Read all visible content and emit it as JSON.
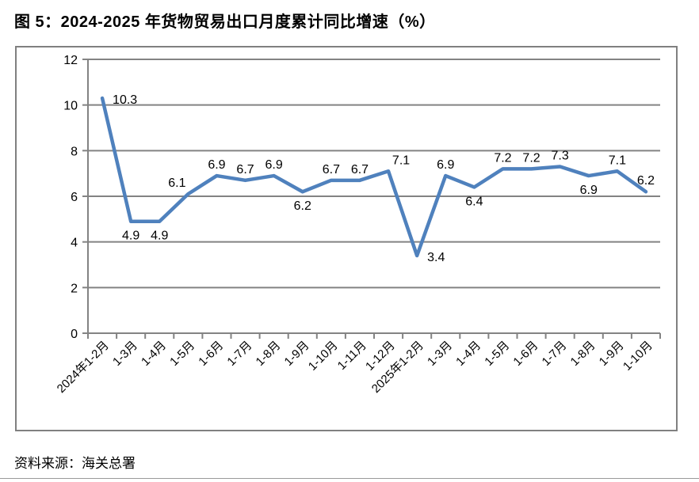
{
  "page": {
    "figure_title": "图 5：2024-2025 年货物贸易出口月度累计同比增速（%）",
    "source_note": "资料来源：海关总署"
  },
  "chart_data": {
    "type": "line",
    "title": "图 5：2024-2025 年货物贸易出口月度累计同比增速（%）",
    "xlabel": "",
    "ylabel": "",
    "categories": [
      "2024年1-2月",
      "1-3月",
      "1-4月",
      "1-5月",
      "1-6月",
      "1-7月",
      "1-8月",
      "1-9月",
      "1-10月",
      "1-11月",
      "1-12月",
      "2025年1-2月",
      "1-3月",
      "1-4月",
      "1-5月",
      "1-6月",
      "1-7月",
      "1-8月",
      "1-9月",
      "1-10月"
    ],
    "values": [
      10.3,
      4.9,
      4.9,
      6.1,
      6.9,
      6.7,
      6.9,
      6.2,
      6.7,
      6.7,
      7.1,
      3.4,
      6.9,
      6.4,
      7.2,
      7.2,
      7.3,
      6.9,
      7.1,
      6.2
    ],
    "data_labels_visible": true,
    "data_label_decimals": 1,
    "label_placements": [
      "right",
      "below",
      "below",
      "above-left",
      "above",
      "above",
      "above",
      "below",
      "above",
      "above",
      "above-right",
      "right",
      "above",
      "below",
      "above",
      "above",
      "above",
      "below",
      "above",
      "above"
    ],
    "ylim": [
      0,
      12
    ],
    "yticks": [
      0,
      2,
      4,
      6,
      8,
      10,
      12
    ],
    "grid": true,
    "legend": "none",
    "colors": {
      "line": "#4f81bd",
      "grid": "#838383",
      "frame": "#808080",
      "text": "#000000"
    }
  }
}
